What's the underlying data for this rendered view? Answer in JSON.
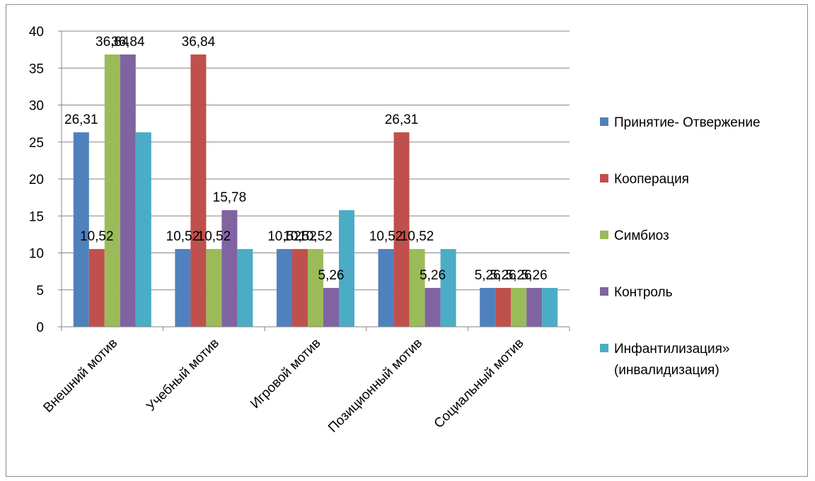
{
  "chart_data": {
    "type": "bar",
    "categories": [
      "Внешний мотив",
      "Учебный мотив",
      "Игровой мотив",
      "Позиционный мотив",
      "Социальный мотив"
    ],
    "series": [
      {
        "name": "Принятие- Отвержение",
        "color": "#4f81bd",
        "values": [
          26.31,
          10.52,
          10.52,
          10.52,
          5.26
        ],
        "labels": [
          "26,31",
          "10,52",
          "10,52",
          "10,52",
          "5,26"
        ]
      },
      {
        "name": "Кооперация",
        "color": "#c0504d",
        "values": [
          10.52,
          36.84,
          10.52,
          26.31,
          5.26
        ],
        "labels": [
          "10,52",
          "36,84",
          "10,52",
          "26,31",
          "5,26"
        ]
      },
      {
        "name": "Симбиоз",
        "color": "#9bbb59",
        "values": [
          36.84,
          10.52,
          10.52,
          10.52,
          5.26
        ],
        "labels": [
          "36,84",
          "10,52",
          "10,52",
          "10,52",
          "5,26"
        ]
      },
      {
        "name": "Контроль",
        "color": "#8064a2",
        "values": [
          36.84,
          15.78,
          5.26,
          5.26,
          5.26
        ],
        "labels": [
          "36,84",
          "15,78",
          "5,26",
          "5,26",
          "5,26"
        ]
      },
      {
        "name": "Инфантилизация» (инвалидизация)",
        "name_lines": [
          "Инфантилизация»",
          "(инвалидизация)"
        ],
        "color": "#4bacc6",
        "values": [
          26.31,
          10.52,
          15.78,
          10.52,
          5.26
        ]
      }
    ],
    "ylim": [
      0,
      40
    ],
    "yticks": [
      0,
      5,
      10,
      15,
      20,
      25,
      30,
      35,
      40
    ],
    "grid": true,
    "legend_position": "right",
    "title": "",
    "xlabel": "",
    "ylabel": ""
  }
}
